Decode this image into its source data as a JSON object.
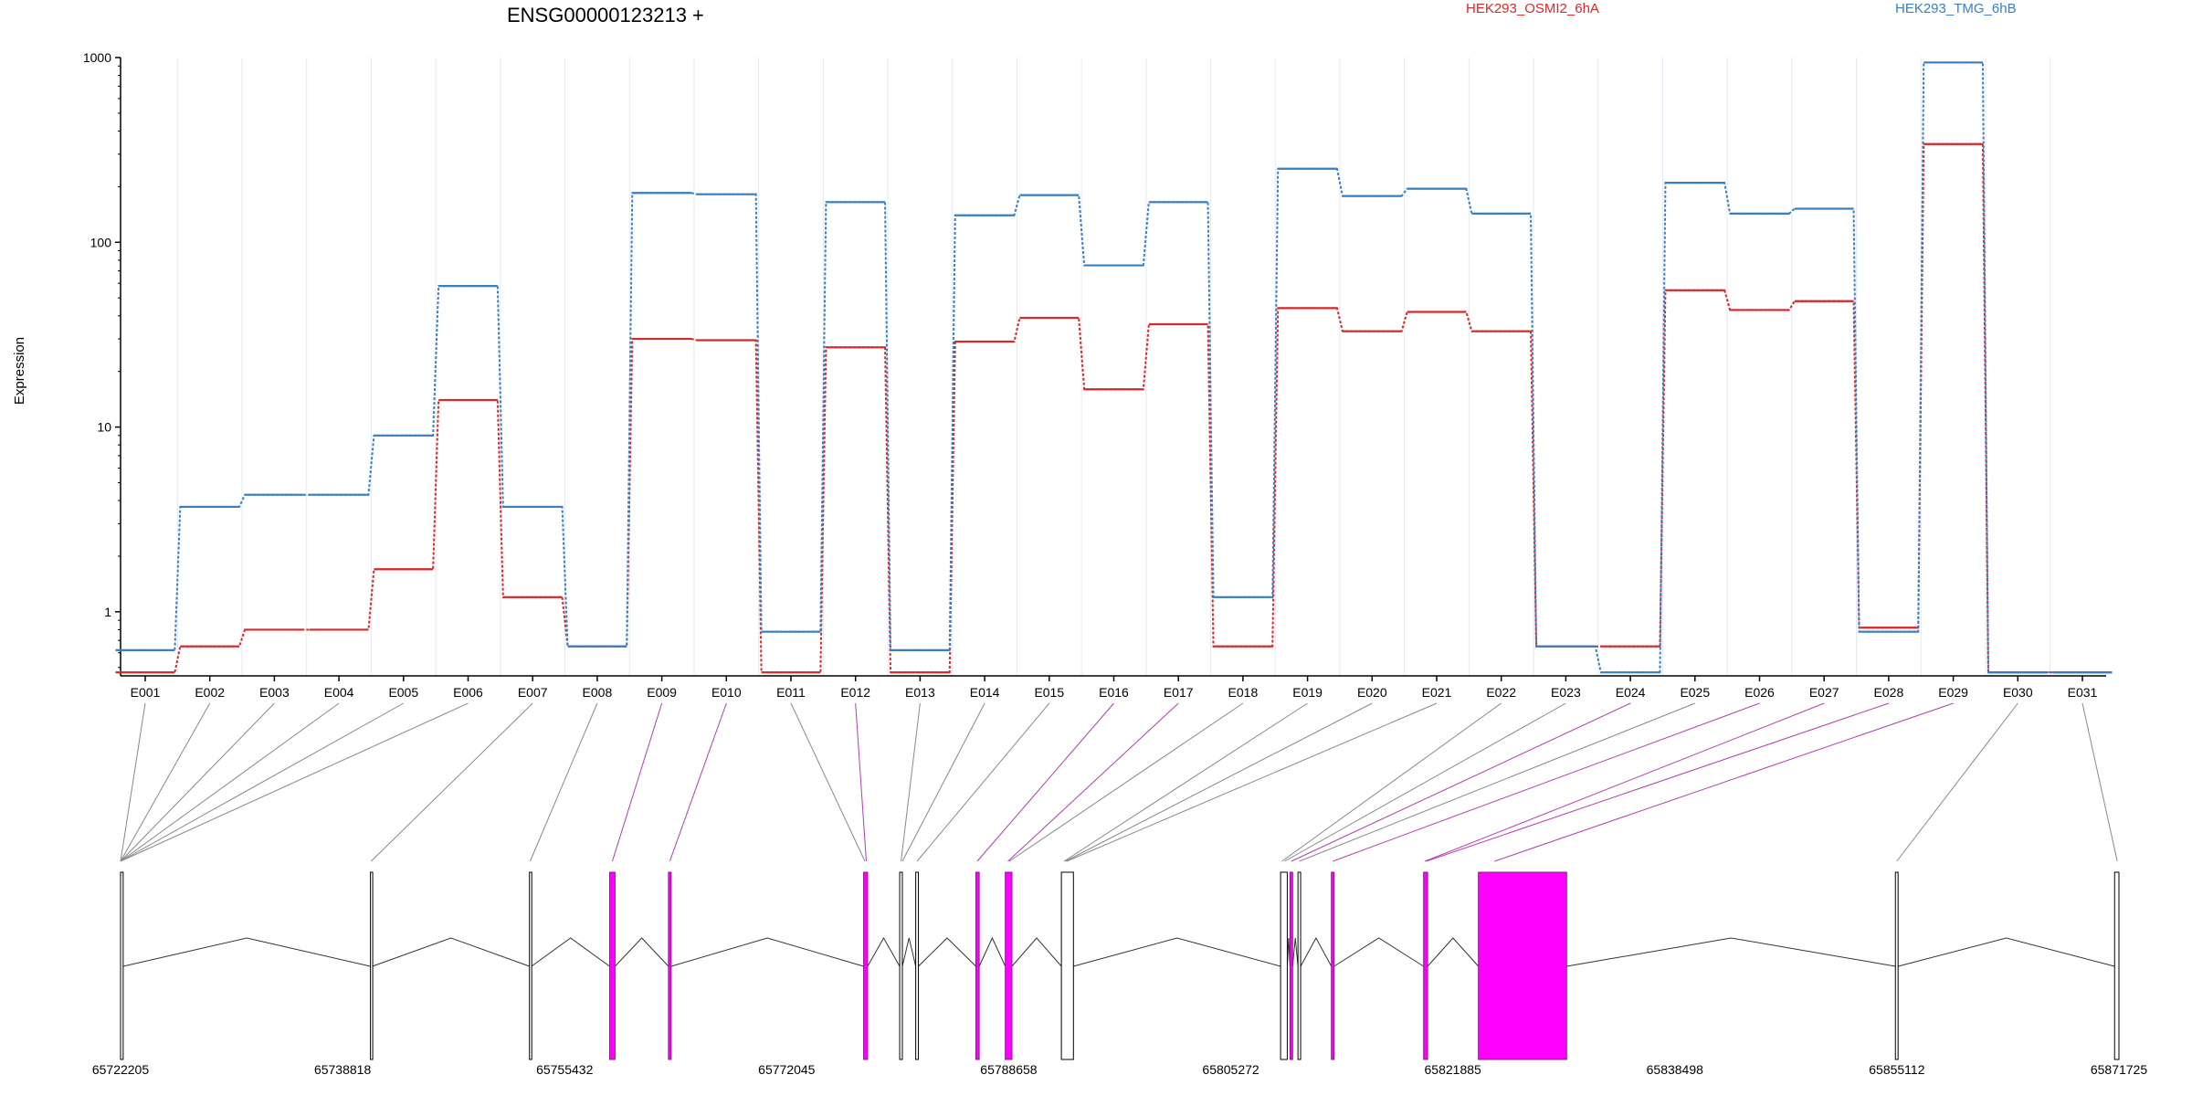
{
  "chart_data": {
    "type": "line",
    "title": "ENSG00000123213 +",
    "ylabel": "Expression",
    "yscale": "log",
    "ylim": [
      0.45,
      1000
    ],
    "yticks": [
      1,
      10,
      100,
      1000
    ],
    "ytick_labels": [
      "1",
      "10",
      "100",
      "1000"
    ],
    "categories": [
      "E001",
      "E002",
      "E003",
      "E004",
      "E005",
      "E006",
      "E007",
      "E008",
      "E009",
      "E010",
      "E011",
      "E012",
      "E013",
      "E014",
      "E015",
      "E016",
      "E017",
      "E018",
      "E019",
      "E020",
      "E021",
      "E022",
      "E023",
      "E024",
      "E025",
      "E026",
      "E027",
      "E028",
      "E029",
      "E030",
      "E031"
    ],
    "legend_placement": "top",
    "series": [
      {
        "name": "HEK293_OSMI2_6hA",
        "color": "#d6292a",
        "values": [
          0.47,
          0.65,
          0.8,
          0.8,
          1.7,
          14,
          1.2,
          0.65,
          30,
          29.5,
          0.47,
          27,
          0.47,
          29,
          39,
          16,
          36,
          0.65,
          44,
          33,
          42,
          33,
          0.65,
          0.65,
          55,
          43,
          48,
          0.82,
          340,
          0.47,
          0.47
        ]
      },
      {
        "name": "HEK293_TMG_6hB",
        "color": "#3a7fc1",
        "values": [
          0.62,
          3.7,
          4.3,
          4.3,
          9,
          58,
          3.7,
          0.65,
          185,
          182,
          0.78,
          165,
          0.62,
          140,
          180,
          75,
          165,
          1.2,
          250,
          178,
          195,
          143,
          0.65,
          0.47,
          210,
          143,
          152,
          0.78,
          940,
          0.47,
          0.47
        ]
      }
    ],
    "genomic_axis": {
      "tick_labels": [
        "65722205",
        "65738818",
        "65755432",
        "65772045",
        "65788658",
        "65805272",
        "65821885",
        "65838498",
        "65855112",
        "65871725"
      ],
      "start": 65722205,
      "end": 65871725
    },
    "exon_map": {
      "highlight_color": "#ff00ff",
      "highlighted_exons": [
        "E009",
        "E010",
        "E012",
        "E016",
        "E017",
        "E024",
        "E026",
        "E027",
        "E028",
        "E029"
      ],
      "exons": [
        {
          "start": 65722205,
          "end": 65722400
        },
        {
          "start": 65740900,
          "end": 65741050
        },
        {
          "start": 65752800,
          "end": 65752950
        },
        {
          "start": 65758800,
          "end": 65759200
        },
        {
          "start": 65763200,
          "end": 65763400
        },
        {
          "start": 65777800,
          "end": 65778100
        },
        {
          "start": 65780500,
          "end": 65780700
        },
        {
          "start": 65781700,
          "end": 65781900
        },
        {
          "start": 65786200,
          "end": 65786450
        },
        {
          "start": 65788400,
          "end": 65788900
        },
        {
          "start": 65792600,
          "end": 65793500
        },
        {
          "start": 65809000,
          "end": 65809500
        },
        {
          "start": 65809700,
          "end": 65809900
        },
        {
          "start": 65810300,
          "end": 65810500
        },
        {
          "start": 65812800,
          "end": 65813000
        },
        {
          "start": 65819700,
          "end": 65820000
        },
        {
          "start": 65823800,
          "end": 65830400
        },
        {
          "start": 65855000,
          "end": 65855200
        },
        {
          "start": 65871400,
          "end": 65871725
        }
      ],
      "exon_links": [
        {
          "exon": "E001",
          "pos": 65722205
        },
        {
          "exon": "E002",
          "pos": 65722205
        },
        {
          "exon": "E003",
          "pos": 65722205
        },
        {
          "exon": "E004",
          "pos": 65722205
        },
        {
          "exon": "E005",
          "pos": 65722205
        },
        {
          "exon": "E006",
          "pos": 65722205
        },
        {
          "exon": "E007",
          "pos": 65740950
        },
        {
          "exon": "E008",
          "pos": 65752850
        },
        {
          "exon": "E009",
          "pos": 65759000
        },
        {
          "exon": "E010",
          "pos": 65763300
        },
        {
          "exon": "E011",
          "pos": 65777900
        },
        {
          "exon": "E012",
          "pos": 65778000
        },
        {
          "exon": "E013",
          "pos": 65780600
        },
        {
          "exon": "E014",
          "pos": 65780700
        },
        {
          "exon": "E015",
          "pos": 65781800
        },
        {
          "exon": "E016",
          "pos": 65786300
        },
        {
          "exon": "E017",
          "pos": 65788600
        },
        {
          "exon": "E018",
          "pos": 65788700
        },
        {
          "exon": "E019",
          "pos": 65792800
        },
        {
          "exon": "E020",
          "pos": 65792900
        },
        {
          "exon": "E021",
          "pos": 65793000
        },
        {
          "exon": "E022",
          "pos": 65809100
        },
        {
          "exon": "E023",
          "pos": 65809300
        },
        {
          "exon": "E024",
          "pos": 65809800
        },
        {
          "exon": "E025",
          "pos": 65810400
        },
        {
          "exon": "E026",
          "pos": 65812900
        },
        {
          "exon": "E027",
          "pos": 65819800
        },
        {
          "exon": "E028",
          "pos": 65819900
        },
        {
          "exon": "E029",
          "pos": 65825000
        },
        {
          "exon": "E030",
          "pos": 65855100
        },
        {
          "exon": "E031",
          "pos": 65871600
        }
      ]
    }
  }
}
